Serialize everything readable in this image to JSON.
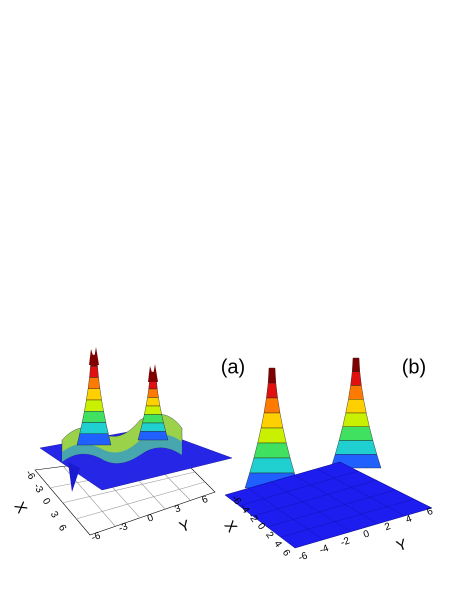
{
  "panels": [
    {
      "label": "(a)",
      "x_axis": {
        "title": "X",
        "ticks": [
          "-6",
          "-3",
          "0",
          "3",
          "6"
        ]
      },
      "y_axis": {
        "title": "Y",
        "ticks": [
          "-6",
          "-3",
          "0",
          "3",
          "6"
        ]
      }
    },
    {
      "label": "(b)",
      "x_axis": {
        "title": "X",
        "ticks": [
          "-6",
          "-4",
          "-2",
          "0",
          "2",
          "4",
          "6"
        ]
      },
      "y_axis": {
        "title": "Y",
        "ticks": [
          "-6",
          "-4",
          "-2",
          "0",
          "2",
          "4",
          "6"
        ]
      }
    }
  ]
}
